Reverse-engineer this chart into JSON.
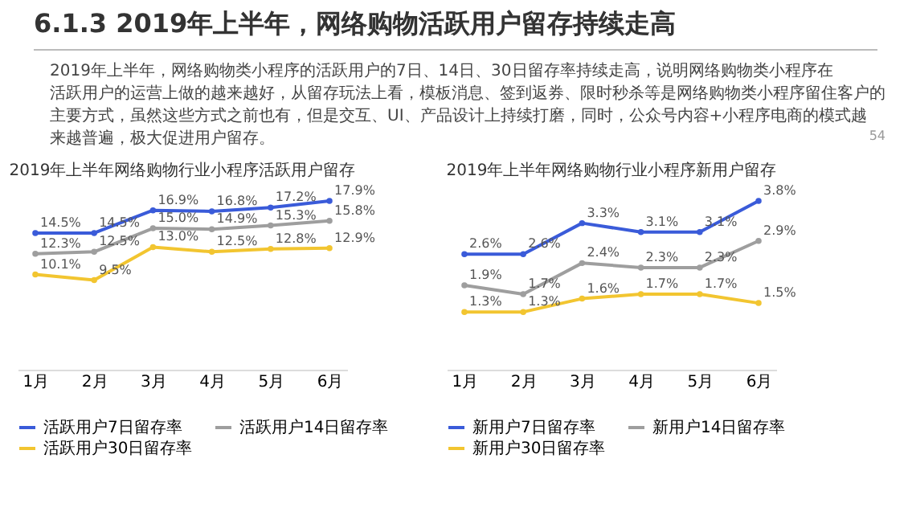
{
  "chart_data": [
    {
      "type": "other",
      "title": "6.1.3 2019年上半年，网络购物活跃用户留存持续走高",
      "annotations": [
        "2019年上半年，网络购物类小程序的活跃用户的7日、14日、30日留存率持续走高，说明网络购物类小程序在活跃用户的运营上做的越来越好，从留存玩法上看，模板消息、签到返券、限时秒杀等是网络购物类小程序留住客户的主要方式，虽然这些方式之前也有，但是交互、UI、产品设计上持续打磨，同时，公众号内容+小程序电商的模式越来越普遍，极大促进用户留存。",
        "54"
      ]
    },
    {
      "type": "line",
      "title": "2019年上半年网络购物行业小程序活跃用户留存",
      "categories": [
        "1月",
        "2月",
        "3月",
        "4月",
        "5月",
        "6月"
      ],
      "marker": "circle",
      "legend": "bottom",
      "grid": false,
      "tick_labels": "x",
      "series": [
        {
          "name": "活跃用户7日留存率",
          "color": "#3a5bd9",
          "values": [
            14.5,
            14.5,
            16.9,
            16.8,
            17.2,
            17.9
          ],
          "value_labels": [
            "14.5%",
            "14.5%",
            "16.9%",
            "16.8%",
            "17.2%",
            "17.9%"
          ]
        },
        {
          "name": "活跃用户14日留存率",
          "color": "#9e9e9e",
          "values": [
            12.3,
            12.5,
            15.0,
            14.9,
            15.3,
            15.8
          ],
          "value_labels": [
            "12.3%",
            "12.5%",
            "15.0%",
            "14.9%",
            "15.3%",
            "15.8%"
          ]
        },
        {
          "name": "活跃用户30日留存率",
          "color": "#f2c530",
          "values": [
            10.1,
            9.5,
            13.0,
            12.5,
            12.8,
            12.9
          ],
          "value_labels": [
            "10.1%",
            "9.5%",
            "13.0%",
            "12.5%",
            "12.8%",
            "12.9%"
          ]
        }
      ]
    },
    {
      "type": "line",
      "title": "2019年上半年网络购物行业小程序新用户留存",
      "categories": [
        "1月",
        "2月",
        "3月",
        "4月",
        "5月",
        "6月"
      ],
      "marker": "circle",
      "legend": "bottom",
      "grid": false,
      "tick_labels": "x",
      "series": [
        {
          "name": "新用户7日留存率",
          "color": "#3a5bd9",
          "values": [
            2.6,
            2.6,
            3.3,
            3.1,
            3.1,
            3.8
          ],
          "value_labels": [
            "2.6%",
            "2.6%",
            "3.3%",
            "3.1%",
            "3.1%",
            "3.8%"
          ]
        },
        {
          "name": "新用户14日留存率",
          "color": "#9e9e9e",
          "values": [
            1.9,
            1.7,
            2.4,
            2.3,
            2.3,
            2.9
          ],
          "value_labels": [
            "1.9%",
            "1.7%",
            "2.4%",
            "2.3%",
            "2.3%",
            "2.9%"
          ]
        },
        {
          "name": "新用户30日留存率",
          "color": "#f2c530",
          "values": [
            1.3,
            1.3,
            1.6,
            1.7,
            1.7,
            1.5
          ],
          "value_labels": [
            "1.3%",
            "1.3%",
            "1.6%",
            "1.7%",
            "1.7%",
            "1.5%"
          ]
        }
      ]
    }
  ]
}
